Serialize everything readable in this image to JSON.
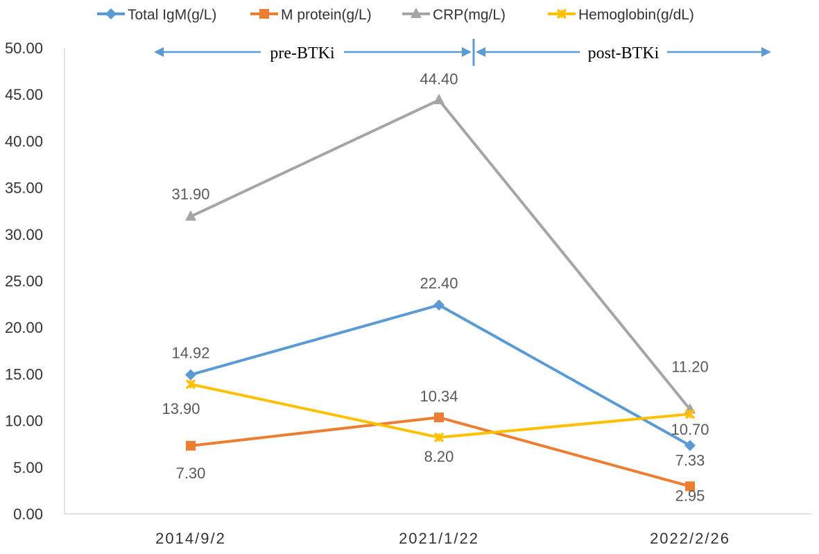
{
  "chart_data": {
    "type": "line",
    "categories": [
      "2014/9/2",
      "2021/1/22",
      "2022/2/26"
    ],
    "ylim": [
      0,
      50
    ],
    "yticks": [
      "0.00",
      "5.00",
      "10.00",
      "15.00",
      "20.00",
      "25.00",
      "30.00",
      "35.00",
      "40.00",
      "45.00",
      "50.00"
    ],
    "grid": false,
    "legend_position": "top",
    "series": [
      {
        "name": "Total IgM(g/L)",
        "color": "#5b9bd5",
        "marker": "diamond",
        "values": [
          14.92,
          22.4,
          7.33
        ],
        "labels": [
          "14.92",
          "22.40",
          "7.33"
        ]
      },
      {
        "name": "M protein(g/L)",
        "color": "#ed7d31",
        "marker": "square",
        "values": [
          7.3,
          10.34,
          2.95
        ],
        "labels": [
          "7.30",
          "10.34",
          "2.95"
        ]
      },
      {
        "name": "CRP(mg/L)",
        "color": "#a5a5a5",
        "marker": "triangle",
        "values": [
          31.9,
          44.4,
          11.2
        ],
        "labels": [
          "31.90",
          "44.40",
          "11.20"
        ]
      },
      {
        "name": "Hemoglobin(g/dL)",
        "color": "#ffc000",
        "marker": "star",
        "values": [
          13.9,
          8.2,
          10.7
        ],
        "labels": [
          "13.90",
          "8.20",
          "10.70"
        ]
      }
    ],
    "annotations": {
      "pre_label": "pre-BTKi",
      "post_label": "post-BTKi",
      "arrow_color": "#5b9bd5"
    }
  }
}
